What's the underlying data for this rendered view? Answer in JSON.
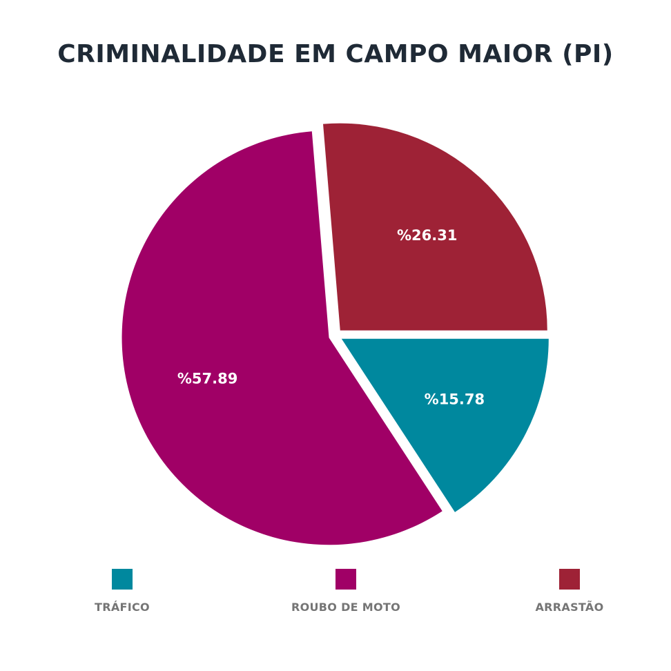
{
  "chart_data": {
    "type": "pie",
    "title": "CRIMINALIDADE EM CAMPO MAIOR (PI)",
    "slices": [
      {
        "name": "TRÁFICO",
        "value": 15.78,
        "label": "%15.78",
        "color": "#00889e"
      },
      {
        "name": "ROUBO DE MOTO",
        "value": 57.89,
        "label": "%57.89",
        "color": "#a00066"
      },
      {
        "name": "ARRASTÃO",
        "value": 26.31,
        "label": "%26.31",
        "color": "#9e2236"
      }
    ],
    "legend_position": "bottom"
  }
}
